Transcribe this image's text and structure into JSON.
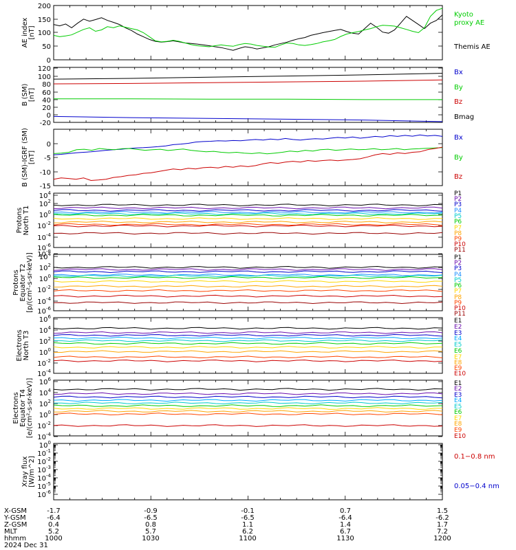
{
  "chart_data": [
    {
      "type": "line",
      "ylabel": [
        "AE index",
        "[nT]"
      ],
      "ylim": [
        0,
        200
      ],
      "yticks": [
        "0",
        "50",
        "100",
        "150",
        "200"
      ],
      "legend": [
        {
          "label": "Kyoto",
          "color": "#00cc00"
        },
        {
          "label": "proxy AE",
          "color": "#00cc00"
        },
        {
          "label": "Themis AE",
          "color": "#000000"
        }
      ],
      "series": [
        {
          "name": "Themis AE",
          "color": "#000000",
          "values": [
            130,
            125,
            132,
            118,
            135,
            150,
            142,
            148,
            155,
            145,
            138,
            130,
            118,
            108,
            95,
            85,
            75,
            68,
            65,
            67,
            70,
            66,
            62,
            60,
            58,
            55,
            52,
            48,
            45,
            40,
            35,
            42,
            48,
            45,
            40,
            44,
            48,
            55,
            60,
            65,
            72,
            78,
            82,
            90,
            95,
            100,
            104,
            108,
            112,
            104,
            98,
            95,
            115,
            135,
            120,
            102,
            98,
            110,
            135,
            160,
            145,
            130,
            115,
            135,
            145,
            165
          ]
        },
        {
          "name": "Kyoto proxy AE",
          "color": "#00cc00",
          "values": [
            90,
            85,
            88,
            92,
            102,
            112,
            118,
            105,
            110,
            122,
            118,
            125,
            120,
            115,
            110,
            100,
            85,
            70,
            66,
            68,
            72,
            68,
            62,
            56,
            52,
            50,
            48,
            52,
            55,
            52,
            50,
            56,
            60,
            58,
            53,
            50,
            47,
            46,
            55,
            62,
            60,
            55,
            53,
            56,
            60,
            66,
            70,
            75,
            86,
            95,
            100,
            104,
            110,
            115,
            122,
            127,
            126,
            124,
            118,
            112,
            105,
            100,
            118,
            160,
            182,
            190
          ]
        }
      ]
    },
    {
      "type": "line",
      "ylabel": [
        "B (SM)",
        "[nT]"
      ],
      "ylim": [
        -20,
        120
      ],
      "yticks": [
        "-20",
        "0",
        "20",
        "40",
        "60",
        "80",
        "100",
        "120"
      ],
      "legend": [
        {
          "label": "Bx",
          "color": "#0000cc"
        },
        {
          "label": "By",
          "color": "#00cc00"
        },
        {
          "label": "Bz",
          "color": "#cc0000"
        },
        {
          "label": "Bmag",
          "color": "#000000"
        }
      ],
      "series": [
        {
          "name": "Bmag",
          "color": "#000000",
          "values": [
            90,
            92,
            95,
            98,
            101,
            105
          ]
        },
        {
          "name": "Bz",
          "color": "#cc0000",
          "values": [
            78,
            79,
            81,
            83,
            85,
            88
          ]
        },
        {
          "name": "By",
          "color": "#00cc00",
          "values": [
            40,
            40,
            39,
            39,
            38,
            38
          ]
        },
        {
          "name": "Bx",
          "color": "#0000cc",
          "values": [
            -5,
            -8,
            -10,
            -12,
            -14,
            -18
          ]
        }
      ]
    },
    {
      "type": "line",
      "ylabel": [
        "B (SM)-IGRF (SM)",
        "[nT]"
      ],
      "ylim": [
        -17,
        5
      ],
      "yticks": [
        "-15",
        "-10",
        "-5",
        "0"
      ],
      "legend": [
        {
          "label": "Bx",
          "color": "#0000cc"
        },
        {
          "label": "By",
          "color": "#00cc00"
        },
        {
          "label": "Bz",
          "color": "#cc0000"
        }
      ],
      "series": [
        {
          "name": "Bx",
          "color": "#0000cc",
          "values": [
            -5,
            -4.8,
            -4.5,
            -4.2,
            -4,
            -3.8,
            -3.5,
            -3.2,
            -3,
            -2.8,
            -2.5,
            -2.3,
            -2.2,
            -2,
            -1.8,
            -1.5,
            -1,
            -0.8,
            -0.5,
            0,
            0.2,
            0.3,
            0.5,
            0.4,
            0.6,
            0.5,
            0.8,
            1,
            0.8,
            1.2,
            0.9,
            1.4,
            1,
            0.8,
            1.1,
            1.3,
            1.2,
            1.5,
            1.8,
            1.6,
            2,
            1.5,
            1.8,
            2.2,
            2,
            2.5,
            2.2,
            2.6,
            2.3,
            2.8,
            2.4,
            2.6,
            2.2
          ]
        },
        {
          "name": "By",
          "color": "#00cc00",
          "values": [
            -4.5,
            -4.3,
            -4,
            -3,
            -2.8,
            -3.2,
            -2.5,
            -2.8,
            -3,
            -2.6,
            -2.5,
            -2.9,
            -3.2,
            -3,
            -2.8,
            -3.3,
            -3,
            -2.7,
            -3.2,
            -3.5,
            -3.8,
            -3.6,
            -4,
            -4.2,
            -4,
            -4.3,
            -4.5,
            -4.2,
            -4.6,
            -4.3,
            -4,
            -3.5,
            -3.8,
            -3.2,
            -3.5,
            -3,
            -2.8,
            -3.2,
            -3,
            -2.7,
            -3,
            -2.9,
            -2.6,
            -3,
            -2.8,
            -2.5,
            -3,
            -2.7,
            -2.6,
            -2.4,
            -2.3,
            -2.2
          ]
        },
        {
          "name": "Bz",
          "color": "#cc0000",
          "values": [
            -14.5,
            -14,
            -14.2,
            -14.5,
            -14,
            -15,
            -14.8,
            -14.5,
            -13.8,
            -13.5,
            -13,
            -12.8,
            -12.2,
            -12,
            -11.5,
            -11,
            -10.5,
            -10.8,
            -10.2,
            -10.5,
            -10,
            -9.8,
            -10.1,
            -9.5,
            -9.8,
            -9.3,
            -9.6,
            -9.2,
            -8.5,
            -8,
            -8.3,
            -7.8,
            -7.5,
            -7.8,
            -7.2,
            -7.5,
            -7.2,
            -7,
            -7.3,
            -7,
            -6.8,
            -6.5,
            -5.8,
            -5,
            -4.5,
            -4.8,
            -4.2,
            -4.5,
            -4,
            -3.8,
            -3,
            -2.5,
            -2
          ]
        }
      ]
    },
    {
      "type": "line",
      "log": true,
      "ylabel": [
        "Protons",
        "North T1"
      ],
      "yticks": [
        "10^4",
        "10^2",
        "10^0",
        "10^-2",
        "10^-4",
        "10^-6",
        "10^-8"
      ],
      "legend": [
        {
          "label": "P1",
          "color": "#000000"
        },
        {
          "label": "P2",
          "color": "#6a0dad"
        },
        {
          "label": "P3",
          "color": "#0000cc"
        },
        {
          "label": "P4",
          "color": "#1e90ff"
        },
        {
          "label": "P5",
          "color": "#00cccc"
        },
        {
          "label": "P6",
          "color": "#00cc00"
        },
        {
          "label": "P7",
          "color": "#ffd700"
        },
        {
          "label": "P8",
          "color": "#ffa500"
        },
        {
          "label": "P9",
          "color": "#ff4500"
        },
        {
          "label": "P10",
          "color": "#cc0000"
        },
        {
          "label": "P11",
          "color": "#990000"
        }
      ],
      "levels": [
        2.0,
        1.4,
        0.9,
        0.5,
        0.2,
        -0.1,
        -0.8,
        -1.5,
        -2.0,
        -2.3,
        -3.8
      ]
    },
    {
      "type": "line",
      "log": true,
      "ylabel": [
        "Protons",
        "Equator T2",
        "[p/(cm²-s-sr-keV)]"
      ],
      "yticks": [
        "10^4",
        "10^2",
        "10^0",
        "10^-2",
        "10^-4",
        "10^-6"
      ],
      "legend": [
        {
          "label": "P1",
          "color": "#000000"
        },
        {
          "label": "P2",
          "color": "#6a0dad"
        },
        {
          "label": "P3",
          "color": "#0000cc"
        },
        {
          "label": "P4",
          "color": "#1e90ff"
        },
        {
          "label": "P5",
          "color": "#00cccc"
        },
        {
          "label": "P6",
          "color": "#00cc00"
        },
        {
          "label": "P7",
          "color": "#ffd700"
        },
        {
          "label": "P8",
          "color": "#ffa500"
        },
        {
          "label": "P9",
          "color": "#ff4500"
        },
        {
          "label": "P10",
          "color": "#cc0000"
        },
        {
          "label": "P11",
          "color": "#990000"
        }
      ],
      "levels": [
        2.0,
        1.6,
        1.2,
        0.6,
        0.4,
        0.1,
        -0.6,
        -1.5,
        -2.3,
        -3.3,
        -4.5
      ]
    },
    {
      "type": "line",
      "log": true,
      "ylabel": [
        "Electrons",
        "North T3"
      ],
      "yticks": [
        "10^6",
        "10^4",
        "10^2",
        "10^0",
        "10^-2",
        "10^-4"
      ],
      "legend": [
        {
          "label": "E1",
          "color": "#000000"
        },
        {
          "label": "E2",
          "color": "#6a0dad"
        },
        {
          "label": "E3",
          "color": "#0000cc"
        },
        {
          "label": "E4",
          "color": "#00aaff"
        },
        {
          "label": "E5",
          "color": "#00cccc"
        },
        {
          "label": "E6",
          "color": "#00cc00"
        },
        {
          "label": "E7",
          "color": "#ffd700"
        },
        {
          "label": "E8",
          "color": "#ffa500"
        },
        {
          "label": "E9",
          "color": "#ff4500"
        },
        {
          "label": "E10",
          "color": "#cc0000"
        }
      ],
      "levels": [
        4.3,
        3.5,
        3.0,
        2.5,
        2.0,
        1.5,
        0.8,
        0.0,
        -1.0,
        -1.7
      ]
    },
    {
      "type": "line",
      "log": true,
      "ylabel": [
        "Electrons",
        "Equator T4",
        "[e/(cm²-s-sr-keV)]"
      ],
      "yticks": [
        "10^6",
        "10^4",
        "10^2",
        "10^0",
        "10^-2",
        "10^-4"
      ],
      "legend": [
        {
          "label": "E1",
          "color": "#000000"
        },
        {
          "label": "E2",
          "color": "#6a0dad"
        },
        {
          "label": "E3",
          "color": "#0000cc"
        },
        {
          "label": "E4",
          "color": "#00aaff"
        },
        {
          "label": "E5",
          "color": "#00cccc"
        },
        {
          "label": "E6",
          "color": "#00cc00"
        },
        {
          "label": "E7",
          "color": "#ffd700"
        },
        {
          "label": "E8",
          "color": "#ffa500"
        },
        {
          "label": "E9",
          "color": "#ff4500"
        },
        {
          "label": "E10",
          "color": "#cc0000"
        }
      ],
      "levels": [
        4.6,
        3.8,
        3.2,
        2.6,
        2.1,
        1.6,
        1.1,
        0.6,
        0.1,
        -2.0
      ]
    },
    {
      "type": "line",
      "log": true,
      "ylabel": [
        "Xray flux",
        "[W/m^2]"
      ],
      "yticks": [
        "10^0",
        "10^-1",
        "10^-2",
        "10^-3",
        "10^-4",
        "10^-5",
        "10^-6"
      ],
      "legend": [
        {
          "label": "0.1−0.8 nm",
          "color": "#cc0000"
        },
        {
          "label": "0.05−0.4 nm",
          "color": "#0000cc"
        }
      ]
    }
  ],
  "orbit_table": {
    "rows": [
      {
        "label": "X-GSM",
        "values": [
          "-1.7",
          "-0.9",
          "-0.1",
          "0.7",
          "1.5"
        ]
      },
      {
        "label": "Y-GSM",
        "values": [
          "-6.4",
          "-6.5",
          "-6.5",
          "-6.4",
          "-6.2"
        ]
      },
      {
        "label": "Z-GSM",
        "values": [
          "0.4",
          "0.8",
          "1.1",
          "1.4",
          "1.7"
        ]
      },
      {
        "label": "MLT",
        "values": [
          "5.2",
          "5.7",
          "6.2",
          "6.7",
          "7.2"
        ]
      },
      {
        "label": "hhmm",
        "values": [
          "1000",
          "1030",
          "1100",
          "1130",
          "1200"
        ]
      }
    ],
    "date": "2024 Dec 31"
  }
}
